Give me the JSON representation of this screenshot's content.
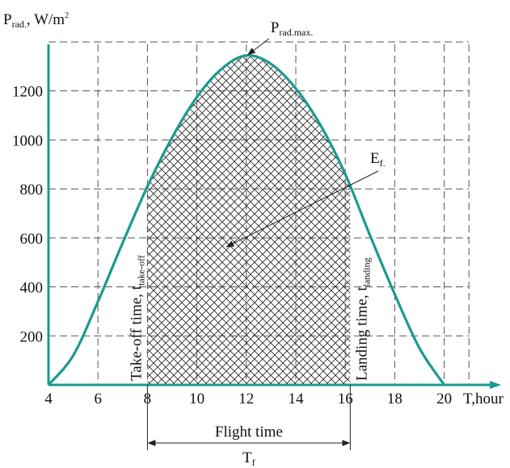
{
  "chart_data": {
    "type": "area",
    "ylabel": "P",
    "ylabel_sub": "rad.",
    "ylabel_unit": ", W/m",
    "ylabel_unit_sup": "2",
    "xlabel": "T,hour",
    "xlim": [
      4,
      21
    ],
    "ylim": [
      0,
      1400
    ],
    "x_ticks": [
      4,
      6,
      8,
      10,
      12,
      14,
      16,
      18,
      20
    ],
    "y_ticks": [
      200,
      400,
      600,
      800,
      1000,
      1200
    ],
    "grid": true,
    "series": [
      {
        "x": [
          4,
          5,
          6,
          7,
          8,
          9,
          10,
          11,
          12,
          13,
          14,
          15,
          16,
          17,
          18,
          19,
          20
        ],
        "values": [
          0,
          120,
          340,
          580,
          810,
          1010,
          1175,
          1290,
          1345,
          1310,
          1210,
          1060,
          860,
          610,
          370,
          150,
          0
        ]
      }
    ],
    "shaded_region": {
      "x_start": 8,
      "x_end": 16.2
    },
    "annotations": {
      "peak": {
        "main": "P",
        "sub": "rad.max.",
        "x": 12,
        "y": 1345
      },
      "energy": {
        "main": "E",
        "sub": "f.",
        "target_x": 11.2,
        "target_y": 560
      },
      "takeoff": {
        "main": "Take-off time, t",
        "sub": "take-off",
        "x": 8
      },
      "landing": {
        "main": "Landing time, t",
        "sub": "landing",
        "x": 16.2
      },
      "flight_time": "Flight time",
      "tf": {
        "main": "T",
        "sub": "f"
      }
    },
    "colors": {
      "curve": "#1a9a8e",
      "axis": "#1a9a8e",
      "hatch": "#222222"
    }
  }
}
